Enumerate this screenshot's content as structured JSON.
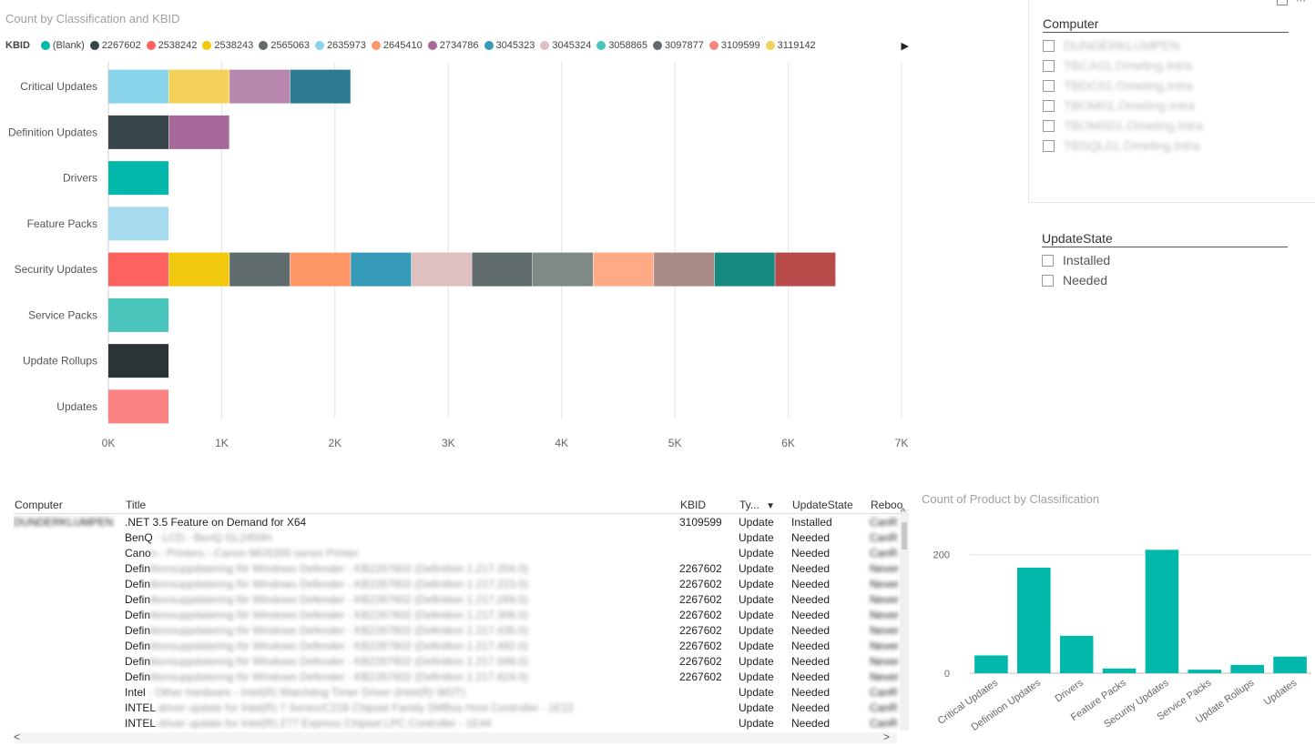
{
  "bar_chart": {
    "title": "Count by Classification and KBID",
    "legend_title": "KBID",
    "legend_arrow": "▶"
  },
  "slicers": {
    "computer": {
      "title": "Computer",
      "items": [
        "DUNDERKLUMPEN",
        "TBCA01.Omeling.Intra",
        "TBDC01.Omeling.Intra",
        "TBOM01.Omeling.Intra",
        "TBOMS01.Omeling.Intra",
        "TBSQL01.Omeling.Intra"
      ]
    },
    "update_state": {
      "title": "UpdateState",
      "items": [
        "Installed",
        "Needed"
      ]
    }
  },
  "table": {
    "headers": [
      "Computer",
      "Title",
      "KBID",
      "Ty...",
      "UpdateState",
      "Reboo"
    ],
    "sort_icon": "▼",
    "rows": [
      {
        "computer": "DUNDERKLUMPEN",
        "title": ".NET 3.5 Feature on Demand for X64",
        "title_blur": "",
        "kbid": "3109599",
        "type": "Update",
        "state": "Installed",
        "reboot": "CanR"
      },
      {
        "computer": "",
        "title": "BenQ",
        "title_blur": " - LCD - BenQ GL2450H",
        "kbid": "",
        "type": "Update",
        "state": "Needed",
        "reboot": "CanR"
      },
      {
        "computer": "",
        "title": "Cano",
        "title_blur": "n - Printers - Canon MG5300 series Printer",
        "kbid": "",
        "type": "Update",
        "state": "Needed",
        "reboot": "CanR"
      },
      {
        "computer": "",
        "title": "Defin",
        "title_blur": "itionsuppdatering för Windows Defender - KB2267602 (Definition 1.217.204.0)",
        "kbid": "2267602",
        "type": "Update",
        "state": "Needed",
        "reboot": "Never"
      },
      {
        "computer": "",
        "title": "Defin",
        "title_blur": "itionsuppdatering för Windows Defender - KB2267602 (Definition 1.217.223.0)",
        "kbid": "2267602",
        "type": "Update",
        "state": "Needed",
        "reboot": "Never"
      },
      {
        "computer": "",
        "title": "Defin",
        "title_blur": "itionsuppdatering för Windows Defender - KB2267602 (Definition 1.217.269.0)",
        "kbid": "2267602",
        "type": "Update",
        "state": "Needed",
        "reboot": "Never"
      },
      {
        "computer": "",
        "title": "Defin",
        "title_blur": "itionsuppdatering för Windows Defender - KB2267602 (Definition 1.217.306.0)",
        "kbid": "2267602",
        "type": "Update",
        "state": "Needed",
        "reboot": "Never"
      },
      {
        "computer": "",
        "title": "Defin",
        "title_blur": "itionsuppdatering för Windows Defender - KB2267602 (Definition 1.217.435.0)",
        "kbid": "2267602",
        "type": "Update",
        "state": "Needed",
        "reboot": "Never"
      },
      {
        "computer": "",
        "title": "Defin",
        "title_blur": "itionsuppdatering för Windows Defender - KB2267602 (Definition 1.217.492.0)",
        "kbid": "2267602",
        "type": "Update",
        "state": "Needed",
        "reboot": "Never"
      },
      {
        "computer": "",
        "title": "Defin",
        "title_blur": "itionsuppdatering för Windows Defender - KB2267602 (Definition 1.217.599.0)",
        "kbid": "2267602",
        "type": "Update",
        "state": "Needed",
        "reboot": "Never"
      },
      {
        "computer": "",
        "title": "Defin",
        "title_blur": "itionsuppdatering för Windows Defender - KB2267602 (Definition 1.217.824.0)",
        "kbid": "2267602",
        "type": "Update",
        "state": "Needed",
        "reboot": "Never"
      },
      {
        "computer": "",
        "title": "Intel",
        "title_blur": " - Other hardware - Intel(R) Watchdog Timer Driver (Intel(R) WDT)",
        "kbid": "",
        "type": "Update",
        "state": "Needed",
        "reboot": "CanR"
      },
      {
        "computer": "",
        "title": "INTEL",
        "title_blur": " driver update for Intel(R) 7 Series/C216 Chipset Family SMBus Host Controller - 1E22",
        "kbid": "",
        "type": "Update",
        "state": "Needed",
        "reboot": "CanR"
      },
      {
        "computer": "",
        "title": "INTEL",
        "title_blur": " driver update for Intel(R) Z77 Express Chipset LPC Controller - 1E44",
        "kbid": "",
        "type": "Update",
        "state": "Needed",
        "reboot": "CanR"
      }
    ],
    "scroll_left": "<",
    "scroll_right": ">",
    "scroll_up": "^"
  },
  "chart_data": [
    {
      "type": "bar",
      "orientation": "horizontal",
      "stacked": true,
      "title": "Count by Classification and KBID",
      "legend_title": "KBID",
      "legend_position": "top",
      "categories": [
        "Critical Updates",
        "Definition Updates",
        "Drivers",
        "Feature Packs",
        "Security Updates",
        "Service Packs",
        "Update Rollups",
        "Updates"
      ],
      "xlim": [
        0,
        7000
      ],
      "xticks": [
        "0K",
        "1K",
        "2K",
        "3K",
        "4K",
        "5K",
        "6K",
        "7K"
      ],
      "grid": true,
      "legend": [
        {
          "name": "(Blank)",
          "color": "#01B8AA"
        },
        {
          "name": "2267602",
          "color": "#374649"
        },
        {
          "name": "2538242",
          "color": "#FD625E"
        },
        {
          "name": "2538243",
          "color": "#F2C80F"
        },
        {
          "name": "2565063",
          "color": "#5F6B6D"
        },
        {
          "name": "2635973",
          "color": "#8AD4EB"
        },
        {
          "name": "2645410",
          "color": "#FE9666"
        },
        {
          "name": "2734786",
          "color": "#A66999"
        },
        {
          "name": "3045323",
          "color": "#3599B8"
        },
        {
          "name": "3045324",
          "color": "#DFBFBF"
        },
        {
          "name": "3058865",
          "color": "#4AC5BB"
        },
        {
          "name": "3097877",
          "color": "#5F6B6D"
        },
        {
          "name": "3109599",
          "color": "#FB8281"
        },
        {
          "name": "3119142",
          "color": "#F4D25A"
        }
      ],
      "stacks": [
        {
          "category": "Critical Updates",
          "segments": [
            {
              "value": 535,
              "color": "#8AD4EB"
            },
            {
              "value": 535,
              "color": "#F4D25A"
            },
            {
              "value": 535,
              "color": "#B887AD"
            },
            {
              "value": 535,
              "color": "#2B7A92"
            }
          ]
        },
        {
          "category": "Definition Updates",
          "segments": [
            {
              "value": 535,
              "color": "#374649"
            },
            {
              "value": 535,
              "color": "#A66999"
            }
          ]
        },
        {
          "category": "Drivers",
          "segments": [
            {
              "value": 535,
              "color": "#01B8AA"
            }
          ]
        },
        {
          "category": "Feature Packs",
          "segments": [
            {
              "value": 535,
              "color": "#A7DCEE"
            }
          ]
        },
        {
          "category": "Security Updates",
          "segments": [
            {
              "value": 535,
              "color": "#FD625E"
            },
            {
              "value": 535,
              "color": "#F2C80F"
            },
            {
              "value": 535,
              "color": "#5F6B6D"
            },
            {
              "value": 535,
              "color": "#FE9666"
            },
            {
              "value": 535,
              "color": "#3599B8"
            },
            {
              "value": 535,
              "color": "#DFBFBF"
            },
            {
              "value": 535,
              "color": "#5F6B6D"
            },
            {
              "value": 535,
              "color": "#7F8A87"
            },
            {
              "value": 535,
              "color": "#FEAB85"
            },
            {
              "value": 535,
              "color": "#A98A87"
            },
            {
              "value": 535,
              "color": "#168980"
            },
            {
              "value": 535,
              "color": "#B84A4A"
            }
          ]
        },
        {
          "category": "Service Packs",
          "segments": [
            {
              "value": 535,
              "color": "#4AC5BB"
            }
          ]
        },
        {
          "category": "Update Rollups",
          "segments": [
            {
              "value": 535,
              "color": "#2B3436"
            }
          ]
        },
        {
          "category": "Updates",
          "segments": [
            {
              "value": 535,
              "color": "#FB8281"
            }
          ]
        }
      ]
    },
    {
      "type": "bar",
      "title": "Count of Product by Classification",
      "categories": [
        "Critical Updates",
        "Definition Updates",
        "Drivers",
        "Feature Packs",
        "Security Updates",
        "Service Packs",
        "Update Rollups",
        "Updates"
      ],
      "values": [
        30,
        178,
        63,
        8,
        208,
        6,
        14,
        28
      ],
      "ylim": [
        0,
        230
      ],
      "yticks": [
        "0",
        "200"
      ],
      "color": "#01B8AA"
    }
  ]
}
